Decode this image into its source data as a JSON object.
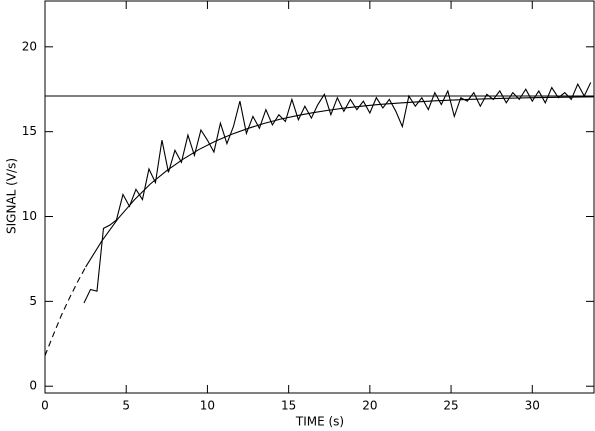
{
  "chart_data": {
    "type": "line",
    "x_label": "TIME (s)",
    "y_label": "SIGNAL (V/s)",
    "xlim": [
      0,
      33.8
    ],
    "ylim": [
      -0.4,
      22.7
    ],
    "xticks": [
      0,
      5,
      10,
      15,
      20,
      25,
      30
    ],
    "yticks": [
      0,
      5,
      10,
      15,
      20
    ],
    "hline": 17.1,
    "color": "#000000",
    "series": [
      {
        "color": "#000000",
        "dash": false,
        "x": [
          2.4,
          2.8,
          3.2,
          3.6,
          4.0,
          4.4,
          4.8,
          5.2,
          5.6,
          6.0,
          6.4,
          6.8,
          7.2,
          7.6,
          8.0,
          8.4,
          8.8,
          9.2,
          9.6,
          10.0,
          10.4,
          10.8,
          11.2,
          11.6,
          12.0,
          12.4,
          12.8,
          13.2,
          13.6,
          14.0,
          14.4,
          14.8,
          15.2,
          15.6,
          16.0,
          16.4,
          16.8,
          17.2,
          17.6,
          18.0,
          18.4,
          18.8,
          19.2,
          19.6,
          20.0,
          20.4,
          20.8,
          21.2,
          21.6,
          22.0,
          22.4,
          22.8,
          23.2,
          23.6,
          24.0,
          24.4,
          24.8,
          25.2,
          25.6,
          26.0,
          26.4,
          26.8,
          27.2,
          27.6,
          28.0,
          28.4,
          28.8,
          29.2,
          29.6,
          30.0,
          30.4,
          30.8,
          31.2,
          31.6,
          32.0,
          32.4,
          32.8,
          33.2,
          33.6
        ],
        "values": [
          4.9,
          5.7,
          5.6,
          9.3,
          9.5,
          9.8,
          11.3,
          10.6,
          11.6,
          11.0,
          12.8,
          12.0,
          14.5,
          12.6,
          13.9,
          13.2,
          14.8,
          13.6,
          15.1,
          14.5,
          13.8,
          15.5,
          14.3,
          15.3,
          16.8,
          14.9,
          15.9,
          15.2,
          16.3,
          15.4,
          16.0,
          15.6,
          16.9,
          15.7,
          16.5,
          15.8,
          16.6,
          17.2,
          16.0,
          17.0,
          16.2,
          16.9,
          16.3,
          16.8,
          16.1,
          17.0,
          16.4,
          16.9,
          16.2,
          15.3,
          17.1,
          16.5,
          17.0,
          16.3,
          17.3,
          16.6,
          17.4,
          15.9,
          17.0,
          16.8,
          17.3,
          16.5,
          17.2,
          16.9,
          17.4,
          16.7,
          17.3,
          16.9,
          17.5,
          16.8,
          17.4,
          16.7,
          17.6,
          17.0,
          17.3,
          16.9,
          17.8,
          17.1,
          17.9
        ]
      },
      {
        "color": "#000000",
        "dash": true,
        "x": [
          0,
          0.5,
          1.0,
          1.5,
          2.0,
          2.5
        ],
        "values": [
          1.8,
          3.0,
          4.16,
          5.18,
          6.14,
          7.02
        ]
      },
      {
        "color": "#000000",
        "dash": false,
        "x": [
          2.5,
          3.5,
          4.5,
          5.5,
          6.5,
          7.5,
          8.5,
          9.5,
          10.5,
          11.5,
          12.5,
          13.5,
          14.5,
          15.5,
          16.5,
          17.5,
          18.5,
          19.5,
          20.5,
          22,
          24,
          26,
          28,
          30,
          32,
          33.8
        ],
        "values": [
          7.02,
          8.56,
          9.88,
          10.98,
          11.93,
          12.71,
          13.38,
          13.96,
          14.44,
          14.85,
          15.19,
          15.49,
          15.74,
          15.94,
          16.12,
          16.27,
          16.4,
          16.5,
          16.6,
          16.7,
          16.82,
          16.9,
          16.96,
          17.0,
          17.03,
          17.05
        ]
      }
    ]
  }
}
